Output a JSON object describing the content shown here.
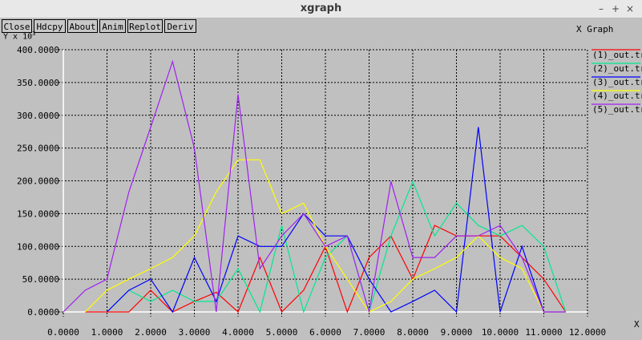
{
  "window": {
    "title": "xgraph",
    "controls": {
      "minimize": "–",
      "maximize": "+",
      "close": "×"
    }
  },
  "toolbar": {
    "buttons": [
      "Close",
      "Hdcpy",
      "About",
      "Anim",
      "Replot",
      "Deriv"
    ]
  },
  "graph": {
    "title": "X Graph",
    "y_unit_label": "Y x 10",
    "y_unit_exp": "3",
    "x_unit_label": "X"
  },
  "chart_data": {
    "type": "line",
    "xlim": [
      0,
      12
    ],
    "ylim": [
      0,
      400
    ],
    "grid": true,
    "legend_position": "right",
    "x_ticks": [
      "0.0000",
      "1.0000",
      "2.0000",
      "3.0000",
      "4.0000",
      "5.0000",
      "6.0000",
      "7.0000",
      "8.0000",
      "9.0000",
      "10.0000",
      "11.0000",
      "12.0000"
    ],
    "y_ticks": [
      "0.0000",
      "50.0000",
      "100.0000",
      "150.0000",
      "200.0000",
      "250.0000",
      "300.0000",
      "350.0000",
      "400.0000"
    ],
    "series": [
      {
        "name": "(1)_out.tr",
        "color": "#ff0000",
        "x": [
          0.5,
          1.0,
          1.5,
          2.0,
          2.5,
          3.0,
          3.5,
          4.0,
          4.5,
          5.0,
          5.5,
          6.0,
          6.5,
          7.0,
          7.5,
          8.0,
          8.5,
          9.0,
          9.5,
          10.0,
          10.5,
          11.0,
          11.5
        ],
        "y": [
          0,
          0,
          0,
          33,
          0,
          16,
          30,
          0,
          83,
          0,
          33,
          100,
          0,
          83,
          116,
          50,
          132,
          116,
          116,
          116,
          83,
          50,
          0
        ]
      },
      {
        "name": "(2)_out.tr",
        "color": "#00e890",
        "x": [
          1.0,
          1.5,
          2.0,
          2.5,
          3.0,
          3.5,
          4.0,
          4.5,
          5.0,
          5.5,
          6.0,
          6.5,
          7.0,
          7.5,
          8.0,
          8.5,
          9.0,
          9.5,
          10.0,
          10.5,
          11.0,
          11.5
        ],
        "y": [
          0,
          33,
          16,
          33,
          16,
          16,
          66,
          0,
          132,
          0,
          83,
          116,
          0,
          116,
          199,
          116,
          166,
          132,
          116,
          132,
          100,
          0
        ]
      },
      {
        "name": "(3)_out.tr",
        "color": "#0000ff",
        "x": [
          1.0,
          1.5,
          2.0,
          2.5,
          3.0,
          3.5,
          4.0,
          4.5,
          5.0,
          5.5,
          6.0,
          6.5,
          7.0,
          7.5,
          8.0,
          8.5,
          9.0,
          9.5,
          10.0,
          10.5,
          11.0,
          11.5
        ],
        "y": [
          0,
          33,
          50,
          0,
          83,
          16,
          116,
          100,
          100,
          150,
          116,
          116,
          50,
          0,
          16,
          33,
          0,
          282,
          0,
          100,
          0,
          0
        ]
      },
      {
        "name": "(4)_out.tr",
        "color": "#ffff00",
        "x": [
          0.5,
          1.0,
          1.5,
          2.0,
          2.5,
          3.0,
          3.5,
          4.0,
          4.5,
          5.0,
          5.5,
          6.0,
          6.5,
          7.0,
          7.5,
          8.0,
          8.5,
          9.0,
          9.5,
          10.0,
          10.5,
          11.0,
          11.5
        ],
        "y": [
          0,
          33,
          50,
          66,
          83,
          116,
          183,
          232,
          232,
          150,
          166,
          100,
          50,
          0,
          16,
          50,
          66,
          83,
          116,
          83,
          66,
          0,
          0
        ]
      },
      {
        "name": "(5)_out.tr",
        "color": "#a020f0",
        "x": [
          0.0,
          0.5,
          1.0,
          1.5,
          2.0,
          2.5,
          3.0,
          3.5,
          4.0,
          4.5,
          5.0,
          5.5,
          6.0,
          6.5,
          7.0,
          7.5,
          8.0,
          8.5,
          9.0,
          9.5,
          10.0,
          10.5,
          11.0,
          11.5
        ],
        "y": [
          0,
          33,
          50,
          183,
          282,
          382,
          250,
          0,
          332,
          66,
          116,
          150,
          100,
          116,
          0,
          199,
          83,
          83,
          116,
          116,
          132,
          83,
          0,
          0
        ]
      }
    ]
  }
}
